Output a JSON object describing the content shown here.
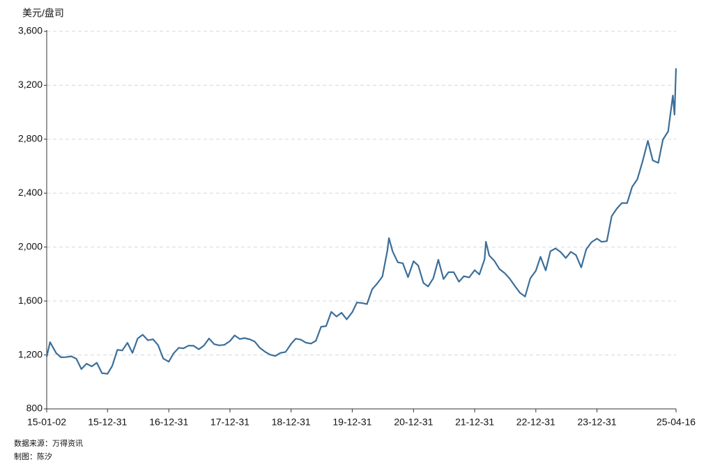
{
  "chart_data": {
    "type": "line",
    "y_label": "美元/盘司",
    "source": "数据来源：万得资讯",
    "author": "制图：陈汐",
    "color": "#3b6e99",
    "grid": true,
    "x": [
      "15-01-02",
      "15-01-22",
      "15-02-28",
      "15-03-28",
      "15-04-28",
      "15-05-28",
      "15-06-28",
      "15-07-28",
      "15-08-28",
      "15-09-28",
      "15-10-28",
      "15-11-28",
      "15-12-31",
      "16-01-28",
      "16-02-28",
      "16-03-28",
      "16-04-28",
      "16-05-28",
      "16-06-28",
      "16-07-28",
      "16-08-28",
      "16-09-28",
      "16-10-28",
      "16-11-28",
      "16-12-31",
      "17-01-28",
      "17-02-28",
      "17-03-28",
      "17-04-28",
      "17-05-28",
      "17-06-28",
      "17-07-28",
      "17-08-28",
      "17-09-28",
      "17-10-28",
      "17-11-28",
      "17-12-31",
      "18-01-28",
      "18-02-28",
      "18-03-28",
      "18-04-28",
      "18-05-28",
      "18-06-28",
      "18-07-28",
      "18-08-28",
      "18-09-28",
      "18-10-28",
      "18-11-28",
      "18-12-31",
      "19-01-28",
      "19-02-28",
      "19-03-28",
      "19-04-28",
      "19-05-28",
      "19-06-28",
      "19-07-28",
      "19-08-28",
      "19-09-28",
      "19-10-28",
      "19-11-28",
      "19-12-31",
      "20-01-28",
      "20-02-28",
      "20-03-28",
      "20-04-28",
      "20-05-28",
      "20-06-28",
      "20-07-28",
      "20-08-06",
      "20-08-28",
      "20-09-28",
      "20-10-28",
      "20-11-28",
      "20-12-31",
      "21-01-28",
      "21-02-28",
      "21-03-28",
      "21-04-28",
      "21-05-28",
      "21-06-28",
      "21-07-28",
      "21-08-28",
      "21-09-28",
      "21-10-28",
      "21-11-28",
      "21-12-31",
      "22-01-28",
      "22-02-28",
      "22-03-08",
      "22-03-28",
      "22-04-28",
      "22-05-28",
      "22-06-28",
      "22-07-28",
      "22-08-28",
      "22-09-28",
      "22-10-28",
      "22-11-28",
      "22-12-31",
      "23-01-28",
      "23-02-28",
      "23-03-28",
      "23-04-28",
      "23-05-28",
      "23-06-28",
      "23-07-28",
      "23-08-28",
      "23-09-28",
      "23-10-28",
      "23-11-28",
      "23-12-31",
      "24-01-28",
      "24-02-28",
      "24-03-28",
      "24-04-28",
      "24-05-28",
      "24-06-28",
      "24-07-28",
      "24-08-28",
      "24-09-28",
      "24-10-30",
      "24-11-28",
      "24-12-31",
      "25-01-28",
      "25-02-28",
      "25-03-28",
      "25-04-07",
      "25-04-16"
    ],
    "values": [
      1186,
      1295,
      1213,
      1183,
      1184,
      1190,
      1172,
      1095,
      1135,
      1115,
      1142,
      1065,
      1060,
      1118,
      1238,
      1233,
      1290,
      1215,
      1322,
      1350,
      1309,
      1316,
      1273,
      1173,
      1150,
      1211,
      1253,
      1249,
      1269,
      1268,
      1242,
      1269,
      1322,
      1280,
      1271,
      1275,
      1303,
      1345,
      1318,
      1325,
      1316,
      1299,
      1252,
      1224,
      1202,
      1192,
      1215,
      1222,
      1282,
      1321,
      1313,
      1292,
      1284,
      1305,
      1409,
      1414,
      1520,
      1485,
      1513,
      1464,
      1517,
      1589,
      1585,
      1577,
      1687,
      1730,
      1781,
      1975,
      2067,
      1968,
      1887,
      1880,
      1777,
      1895,
      1863,
      1734,
      1708,
      1769,
      1906,
      1763,
      1814,
      1814,
      1743,
      1784,
      1775,
      1829,
      1797,
      1909,
      2040,
      1937,
      1897,
      1837,
      1807,
      1766,
      1711,
      1660,
      1633,
      1768,
      1824,
      1928,
      1827,
      1969,
      1990,
      1963,
      1919,
      1965,
      1940,
      1849,
      1983,
      2036,
      2063,
      2039,
      2044,
      2230,
      2286,
      2327,
      2326,
      2447,
      2503,
      2634,
      2788,
      2643,
      2625,
      2798,
      2858,
      3124,
      2982,
      3326
    ],
    "xlim": [
      "15-01-02",
      "25-04-16"
    ],
    "xticks": [
      "15-01-02",
      "15-12-31",
      "16-12-31",
      "17-12-31",
      "18-12-31",
      "19-12-31",
      "20-12-31",
      "21-12-31",
      "22-12-31",
      "23-12-31",
      "25-04-16"
    ],
    "ylim": [
      800,
      3600
    ],
    "yticks": [
      800,
      {
        "value": 1200,
        "label": "1,200"
      },
      {
        "value": 1600,
        "label": "1,600"
      },
      {
        "value": 2000,
        "label": "2,000"
      },
      {
        "value": 2400,
        "label": "2,400"
      },
      {
        "value": 2800,
        "label": "2,800"
      },
      {
        "value": 3200,
        "label": "3,200"
      },
      {
        "value": 3600,
        "label": "3,600"
      }
    ]
  }
}
